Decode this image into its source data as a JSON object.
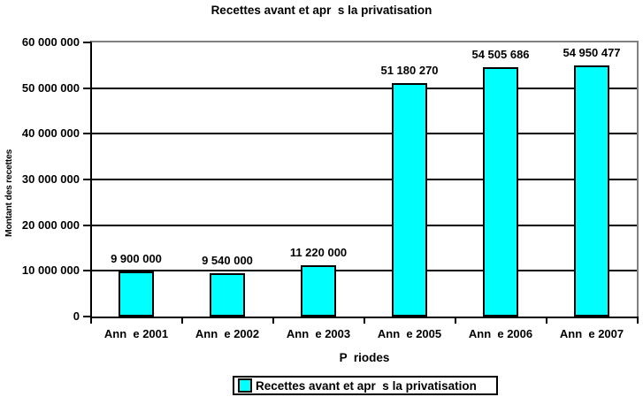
{
  "colors": {
    "bar_fill": "#00FFFF",
    "bar_border": "#000000",
    "gridline": "#000000",
    "plot_border_gray": "#808080",
    "background": "#FFFFFF",
    "text": "#000000"
  },
  "chart_data": {
    "type": "bar",
    "title": "Recettes avant et apr  s la privatisation",
    "categories": [
      "Ann  e 2001",
      "Ann  e 2002",
      "Ann  e 2003",
      "Ann  e 2005",
      "Ann  e 2006",
      "Ann  e 2007"
    ],
    "values": [
      9900000,
      9540000,
      11220000,
      51180270,
      54505686,
      54950477
    ],
    "value_labels": [
      "9 900 000",
      "9 540 000",
      "11 220 000",
      "51 180 270",
      "54 505 686",
      "54 950 477"
    ],
    "xlabel": "P  riodes",
    "ylabel": "Montant des recettes",
    "ylim": [
      0,
      60000000
    ],
    "y_tick_interval": 10000000,
    "y_tick_labels": [
      "60 000 000",
      "50 000 000",
      "40 000 000",
      "30 000 000",
      "20 000 000",
      "10 000 000",
      "0"
    ],
    "grid": "horizontal black gridlines, gray top and right plot border",
    "bar_fill": "#00FFFF",
    "legend": {
      "position": "bottom-center",
      "entries": [
        {
          "label": "Recettes avant et apr  s la privatisation",
          "swatch_color": "#00FFFF"
        }
      ]
    }
  }
}
